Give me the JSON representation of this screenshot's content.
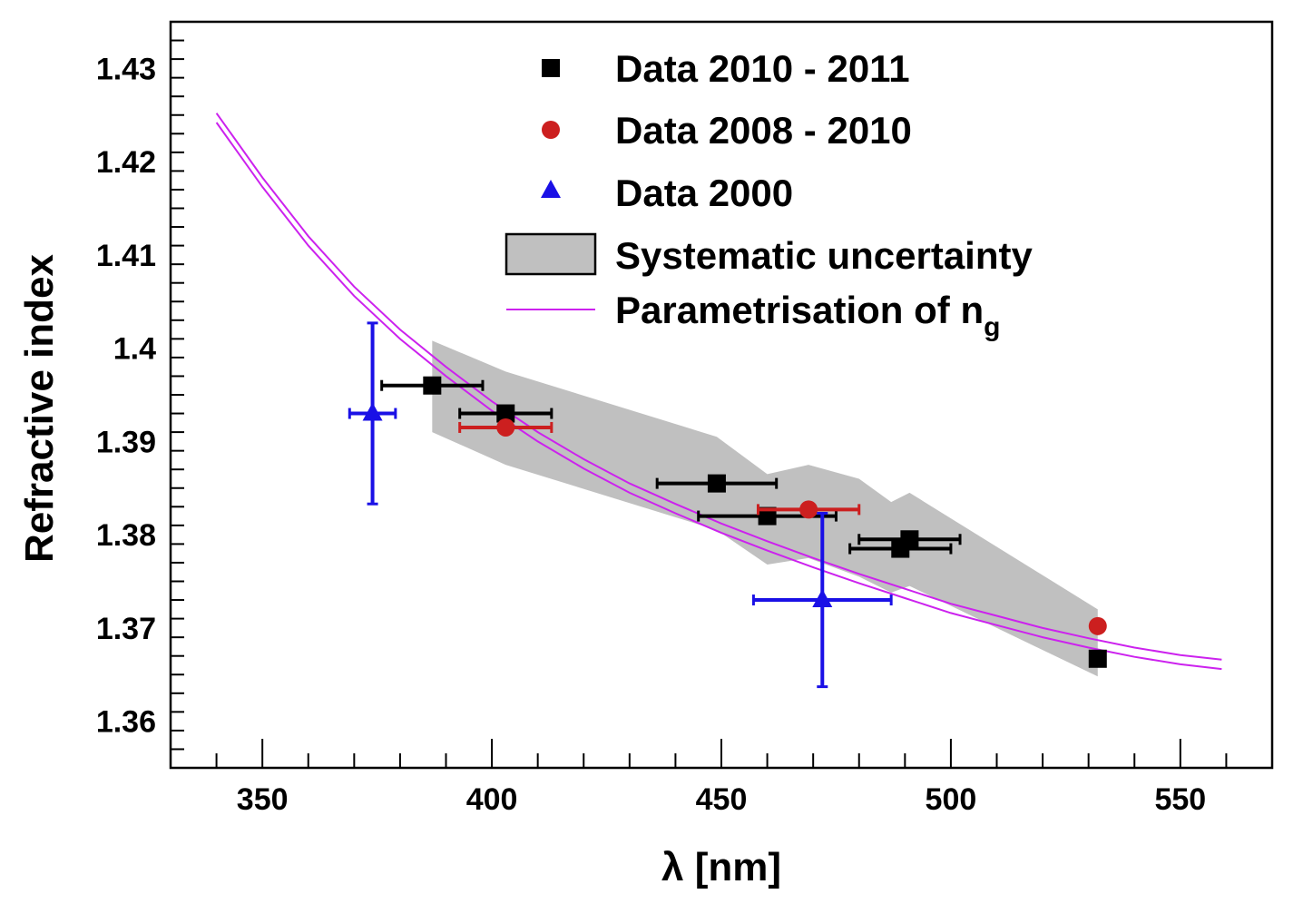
{
  "chart_data": {
    "type": "scatter",
    "xlabel": "λ [nm]",
    "ylabel": "Refractive index",
    "xlim": [
      330,
      570
    ],
    "ylim": [
      1.355,
      1.435
    ],
    "x_ticks": [
      350,
      400,
      450,
      500,
      550
    ],
    "y_ticks": [
      1.36,
      1.37,
      1.38,
      1.39,
      1.4,
      1.41,
      1.42,
      1.43
    ],
    "x_tick_labels": [
      "350",
      "400",
      "450",
      "500",
      "550"
    ],
    "y_tick_labels": [
      "1.36",
      "1.37",
      "1.38",
      "1.39",
      "1.4",
      "1.41",
      "1.42",
      "1.43"
    ],
    "grid": false,
    "legend_position": "top-center",
    "series": [
      {
        "name": "Data 2010 - 2011",
        "marker": "square",
        "color": "#000000",
        "points": [
          {
            "x": 387,
            "y": 1.396,
            "xerr": 11,
            "yerr": 0
          },
          {
            "x": 403,
            "y": 1.393,
            "xerr": 10,
            "yerr": 0
          },
          {
            "x": 449,
            "y": 1.3855,
            "xerr": 13,
            "yerr": 0
          },
          {
            "x": 460,
            "y": 1.382,
            "xerr": 15,
            "yerr": 0
          },
          {
            "x": 489,
            "y": 1.3785,
            "xerr": 11,
            "yerr": 0
          },
          {
            "x": 491,
            "y": 1.3795,
            "xerr": 11,
            "yerr": 0
          },
          {
            "x": 532,
            "y": 1.3667,
            "xerr": 0,
            "yerr": 0
          }
        ]
      },
      {
        "name": "Data 2008 - 2010",
        "marker": "circle",
        "color": "#cc1f1f",
        "points": [
          {
            "x": 403,
            "y": 1.3915,
            "xerr": 10,
            "yerr": 0
          },
          {
            "x": 469,
            "y": 1.3827,
            "xerr": 11,
            "yerr": 0
          },
          {
            "x": 532,
            "y": 1.3702,
            "xerr": 0,
            "yerr": 0
          }
        ]
      },
      {
        "name": "Data 2000",
        "marker": "triangle",
        "color": "#1a10e6",
        "points": [
          {
            "x": 374,
            "y": 1.393,
            "xerr": 5,
            "yerr": 0.0097
          },
          {
            "x": 472,
            "y": 1.373,
            "xerr": 15,
            "yerr": 0.0093
          }
        ]
      }
    ],
    "band": {
      "name": "Systematic uncertainty",
      "color": "#c0c0c0",
      "x": [
        387,
        403,
        449,
        460,
        469,
        480,
        487,
        491,
        532
      ],
      "upper": [
        1.4008,
        1.3975,
        1.3905,
        1.3865,
        1.3875,
        1.386,
        1.3835,
        1.3845,
        1.372
      ],
      "lower": [
        1.391,
        1.3875,
        1.3805,
        1.3768,
        1.3775,
        1.3755,
        1.3738,
        1.3745,
        1.3648
      ]
    },
    "curve": {
      "name": "Parametrisation of n",
      "name_subscript": "g",
      "color": "#cc22ee",
      "x": [
        340,
        350,
        360,
        370,
        380,
        390,
        400,
        410,
        420,
        430,
        440,
        450,
        460,
        470,
        480,
        490,
        500,
        510,
        520,
        530,
        540,
        550,
        559
      ],
      "upper": [
        1.4252,
        1.4183,
        1.412,
        1.4066,
        1.402,
        1.398,
        1.3943,
        1.391,
        1.3881,
        1.3855,
        1.3833,
        1.3812,
        1.3793,
        1.3775,
        1.3758,
        1.3742,
        1.3726,
        1.3713,
        1.37,
        1.3689,
        1.3679,
        1.3671,
        1.3666
      ],
      "lower": [
        1.4242,
        1.4173,
        1.411,
        1.4056,
        1.401,
        1.397,
        1.3933,
        1.39,
        1.3871,
        1.3845,
        1.3823,
        1.3802,
        1.3783,
        1.3765,
        1.3748,
        1.3732,
        1.3716,
        1.3703,
        1.369,
        1.3679,
        1.3669,
        1.3661,
        1.3656
      ]
    }
  }
}
